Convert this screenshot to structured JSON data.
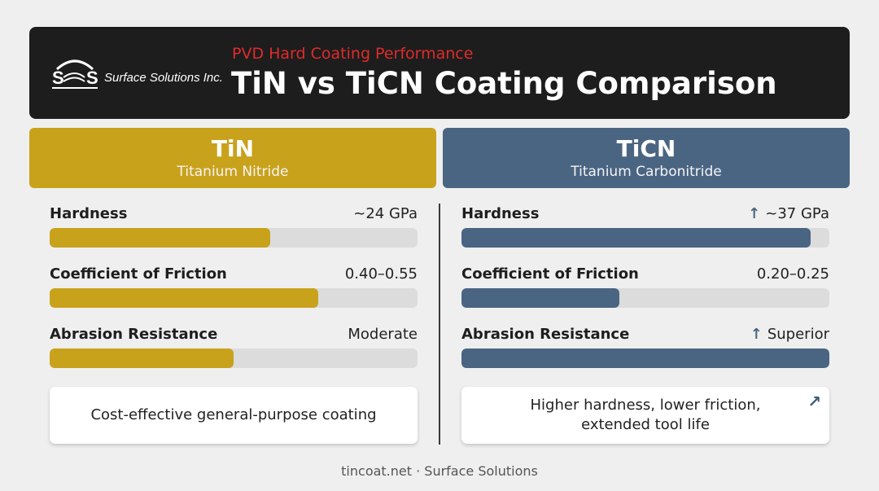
{
  "header": {
    "logo_text": "Surface Solutions Inc.",
    "subtitle": "PVD Hard Coating Performance",
    "title": "TiN vs TiCN Coating Comparison"
  },
  "colors": {
    "tin": "#c9a21c",
    "ticn": "#4a6582",
    "subtitle": "#e02b2b",
    "header_bg": "#1d1d1d"
  },
  "columns": [
    {
      "name": "TiN",
      "full_name": "Titanium Nitride",
      "metrics": [
        {
          "label": "Hardness",
          "value": "~24 GPa",
          "fill": 0.6,
          "icon": ""
        },
        {
          "label": "Coefficient of Friction",
          "value": "0.40–0.55",
          "fill": 0.73,
          "icon": ""
        },
        {
          "label": "Abrasion Resistance",
          "value": "Moderate",
          "fill": 0.5,
          "icon": ""
        }
      ],
      "note": "Cost-effective general-purpose coating"
    },
    {
      "name": "TiCN",
      "full_name": "Titanium Carbonitride",
      "metrics": [
        {
          "label": "Hardness",
          "value": "~37 GPa",
          "fill": 0.95,
          "icon": "arrow-up-icon"
        },
        {
          "label": "Coefficient of Friction",
          "value": "0.20–0.25",
          "fill": 0.43,
          "icon": ""
        },
        {
          "label": "Abrasion Resistance",
          "value": "Superior",
          "fill": 1.0,
          "icon": "arrow-up-icon"
        }
      ],
      "note": "Higher hardness, lower friction, extended tool life",
      "note_icon": "arrow-up-right-icon"
    }
  ],
  "footer": "tincoat.net · Surface Solutions"
}
